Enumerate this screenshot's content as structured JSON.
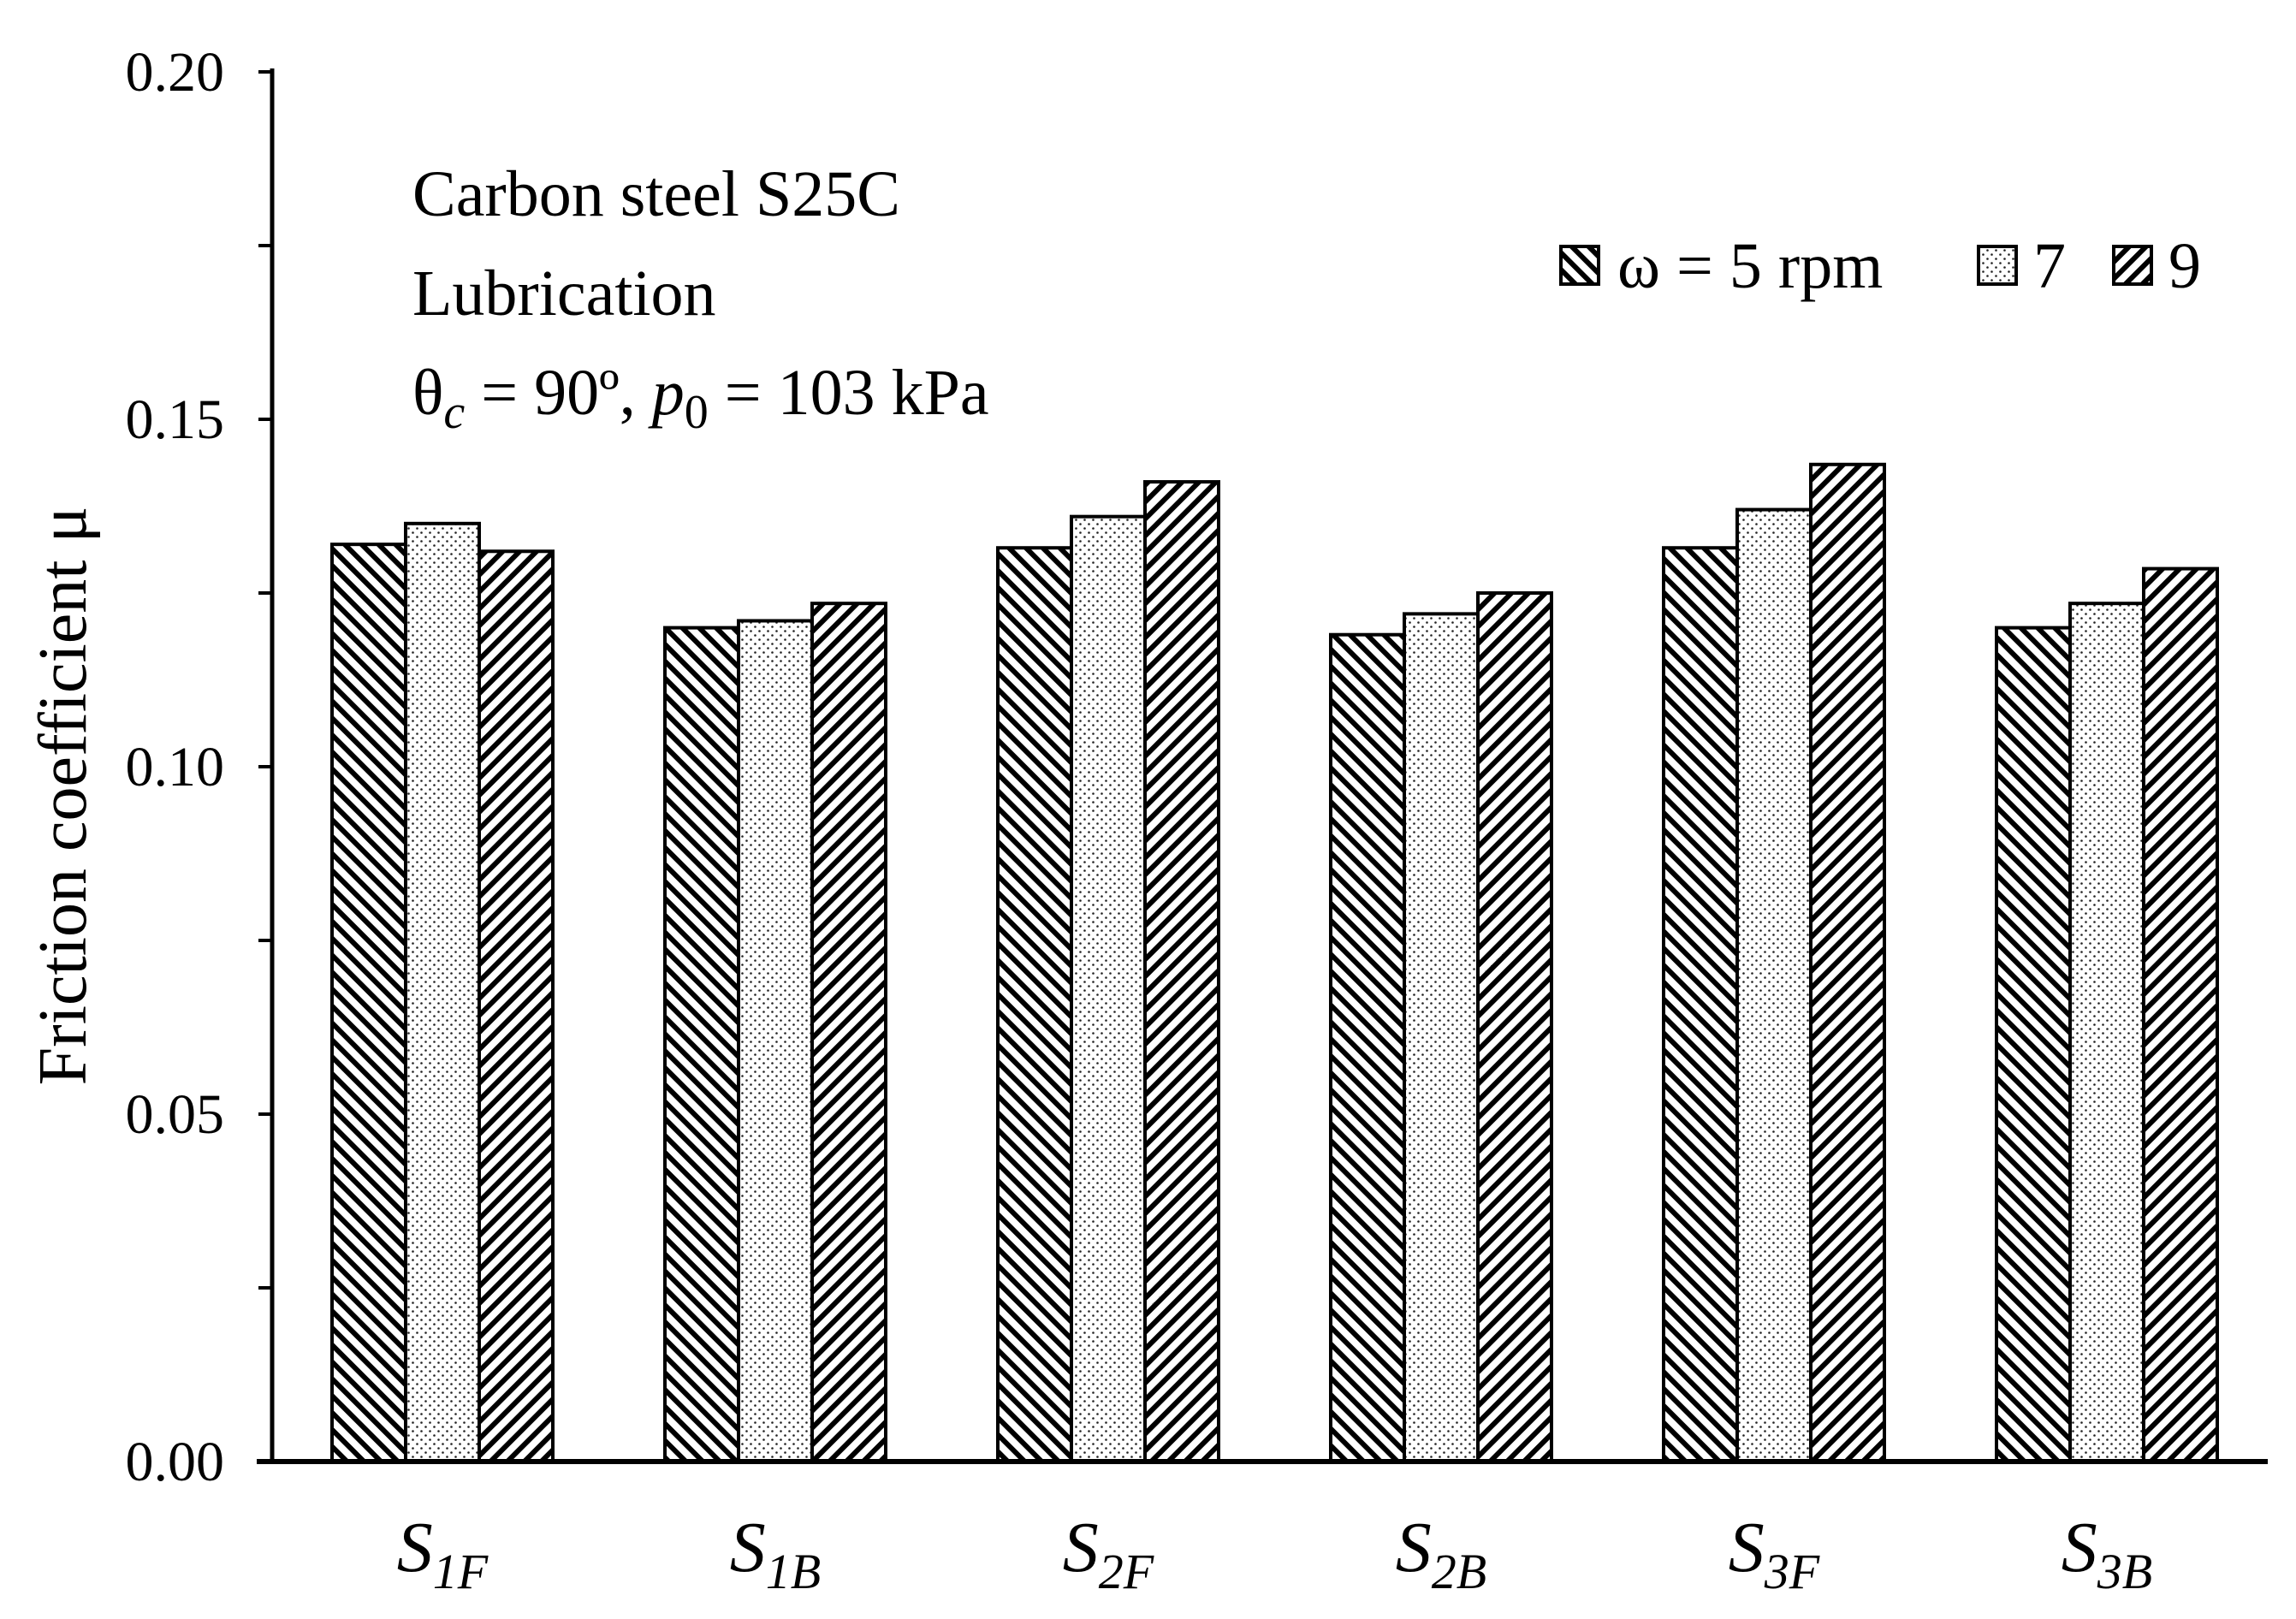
{
  "chart_data": {
    "type": "bar",
    "ylabel": "Friction coefficient μ",
    "ylim": [
      0,
      0.2
    ],
    "yticks": [
      "0.00",
      "0.05",
      "0.10",
      "0.15",
      "0.20"
    ],
    "categories": [
      {
        "main": "S",
        "sub": "1F"
      },
      {
        "main": "S",
        "sub": "1B"
      },
      {
        "main": "S",
        "sub": "2F"
      },
      {
        "main": "S",
        "sub": "2B"
      },
      {
        "main": "S",
        "sub": "3F"
      },
      {
        "main": "S",
        "sub": "3B"
      }
    ],
    "series": [
      {
        "name": "ω = 5 rpm",
        "pattern": "hatch-backslash",
        "values": [
          0.132,
          0.12,
          0.1315,
          0.119,
          0.1315,
          0.12
        ]
      },
      {
        "name": "7",
        "pattern": "dots",
        "values": [
          0.135,
          0.121,
          0.136,
          0.122,
          0.137,
          0.1235
        ]
      },
      {
        "name": "9",
        "pattern": "hatch-slash",
        "values": [
          0.131,
          0.1235,
          0.141,
          0.125,
          0.1435,
          0.1285
        ]
      }
    ],
    "annotation": {
      "line1": "Carbon steel S25C",
      "line2": "Lubrication",
      "line3_theta": "θ",
      "line3_theta_sub": "c",
      "line3_mid": " = 90º,  ",
      "line3_p": "p",
      "line3_p_sub": "0",
      "line3_end": "  = 103 kPa"
    },
    "legend_position": "top-right",
    "grid": false,
    "colors": {
      "bar_fill": "#ffffff",
      "stroke": "#000000"
    }
  }
}
